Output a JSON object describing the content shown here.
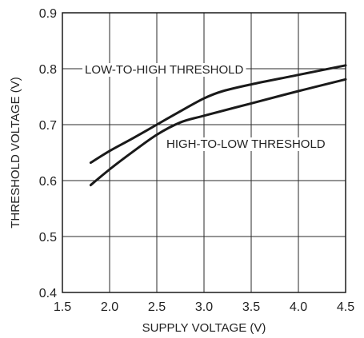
{
  "chart_data": {
    "type": "line",
    "xlabel": "SUPPLY VOLTAGE (V)",
    "ylabel": "THRESHOLD VOLTAGE (V)",
    "xlim": [
      1.5,
      4.5
    ],
    "ylim": [
      0.4,
      0.9
    ],
    "xticks": [
      "1.5",
      "2.0",
      "2.5",
      "3.0",
      "3.5",
      "4.0",
      "4.5"
    ],
    "yticks": [
      "0.4",
      "0.5",
      "0.6",
      "0.7",
      "0.8",
      "0.9"
    ],
    "grid": true,
    "series": [
      {
        "name": "LOW-TO-HIGH THRESHOLD",
        "x": [
          1.8,
          2.0,
          2.25,
          2.5,
          2.75,
          3.0,
          3.2,
          3.5,
          4.0,
          4.5
        ],
        "y": [
          0.632,
          0.653,
          0.676,
          0.7,
          0.724,
          0.747,
          0.76,
          0.772,
          0.789,
          0.806
        ]
      },
      {
        "name": "HIGH-TO-LOW THRESHOLD",
        "x": [
          1.8,
          2.0,
          2.25,
          2.5,
          2.75,
          3.0,
          3.5,
          4.0,
          4.5
        ],
        "y": [
          0.592,
          0.62,
          0.652,
          0.682,
          0.704,
          0.716,
          0.738,
          0.76,
          0.781
        ]
      }
    ]
  }
}
